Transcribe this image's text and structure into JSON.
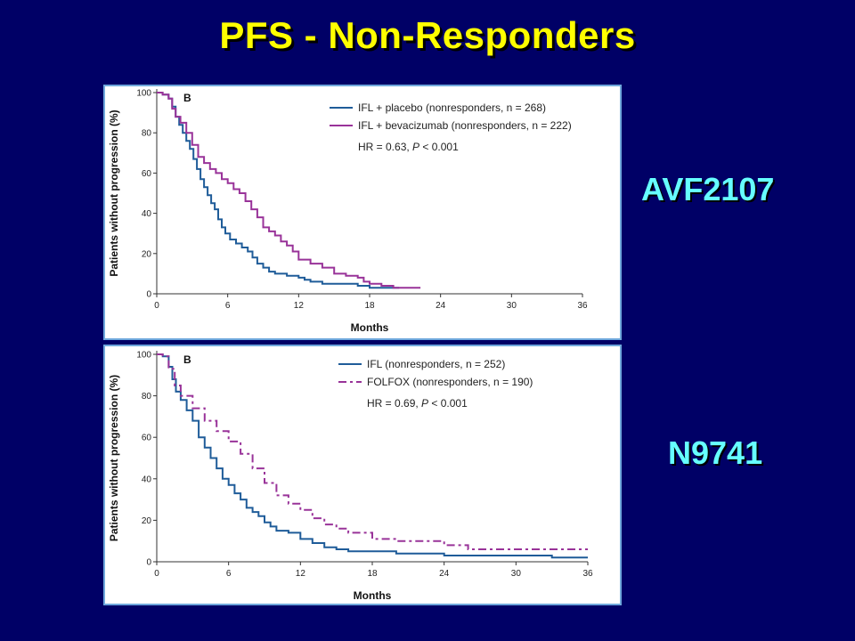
{
  "slide": {
    "title": "PFS - Non-Responders",
    "title_color": "#ffff00",
    "label_color": "#66ffff",
    "background": "#000066"
  },
  "chart_data": [
    {
      "type": "line",
      "trial_label": "AVF2107",
      "panel_letter": "B",
      "xlabel": "Months",
      "ylabel": "Patients without progression (%)",
      "xlim": [
        0,
        36
      ],
      "ylim": [
        0,
        100
      ],
      "xticks": [
        0,
        6,
        12,
        18,
        24,
        30,
        36
      ],
      "yticks": [
        0,
        20,
        40,
        60,
        80,
        100
      ],
      "grid": false,
      "legend_position": "top-right",
      "annotation": {
        "text": "HR = 0.63, ",
        "p_symbol": "P",
        "p_text": " < 0.001"
      },
      "series": [
        {
          "name": "IFL + placebo (nonresponders, n = 268)",
          "color": "#1f5c99",
          "dash": "solid",
          "x": [
            0,
            0.5,
            1,
            1.3,
            1.6,
            1.9,
            2.2,
            2.5,
            2.8,
            3.1,
            3.4,
            3.7,
            4,
            4.3,
            4.6,
            4.9,
            5.2,
            5.5,
            5.8,
            6.2,
            6.7,
            7.2,
            7.7,
            8.1,
            8.5,
            9,
            9.5,
            10,
            11,
            12,
            12.5,
            13,
            14,
            15,
            16,
            17,
            17.5,
            18,
            19,
            20.5
          ],
          "y": [
            100,
            99,
            97,
            93,
            88,
            84,
            80,
            76,
            72,
            67,
            62,
            57,
            53,
            49,
            45,
            42,
            37,
            33,
            30,
            27,
            25,
            23,
            21,
            18,
            15,
            13,
            11,
            10,
            9,
            8,
            7,
            6,
            5,
            5,
            5,
            4,
            4,
            3,
            3,
            3
          ]
        },
        {
          "name": "IFL + bevacizumab (nonresponders, n = 222)",
          "color": "#993399",
          "dash": "solid",
          "x": [
            0,
            0.5,
            1,
            1.3,
            1.6,
            2,
            2.5,
            3,
            3.5,
            4,
            4.5,
            5,
            5.5,
            6,
            6.5,
            7,
            7.5,
            8,
            8.5,
            9,
            9.5,
            10,
            10.5,
            11,
            11.5,
            12,
            13,
            14,
            15,
            16,
            17,
            17.5,
            18,
            19,
            20,
            21,
            22.3
          ],
          "y": [
            100,
            99,
            97,
            92,
            88,
            85,
            80,
            74,
            68,
            65,
            62,
            60,
            57,
            55,
            52,
            50,
            46,
            42,
            38,
            33,
            31,
            29,
            26,
            24,
            21,
            17,
            15,
            13,
            10,
            9,
            8,
            6,
            5,
            4,
            3,
            3,
            3
          ]
        }
      ]
    },
    {
      "type": "line",
      "trial_label": "N9741",
      "panel_letter": "B",
      "xlabel": "Months",
      "ylabel": "Patients without progression (%)",
      "xlim": [
        0,
        36
      ],
      "ylim": [
        0,
        100
      ],
      "xticks": [
        0,
        6,
        12,
        18,
        24,
        30,
        36
      ],
      "yticks": [
        0,
        20,
        40,
        60,
        80,
        100
      ],
      "grid": false,
      "legend_position": "top-right",
      "annotation": {
        "text": "HR = 0.69, ",
        "p_symbol": "P",
        "p_text": " < 0.001"
      },
      "series": [
        {
          "name": "IFL (nonresponders, n = 252)",
          "color": "#1f5c99",
          "dash": "solid",
          "x": [
            0,
            0.5,
            1,
            1.3,
            1.6,
            2,
            2.5,
            3,
            3.5,
            4,
            4.5,
            5,
            5.5,
            6,
            6.5,
            7,
            7.5,
            8,
            8.5,
            9,
            9.5,
            10,
            11,
            12,
            13,
            14,
            15,
            16,
            18,
            20,
            24,
            30,
            33,
            36
          ],
          "y": [
            100,
            99,
            94,
            88,
            82,
            78,
            73,
            68,
            60,
            55,
            50,
            45,
            40,
            37,
            33,
            30,
            26,
            24,
            22,
            19,
            17,
            15,
            14,
            11,
            9,
            7,
            6,
            5,
            5,
            4,
            3,
            3,
            2,
            2
          ]
        },
        {
          "name": "FOLFOX (nonresponders, n = 190)",
          "color": "#993399",
          "dash": "dashdot",
          "x": [
            0,
            0.5,
            1,
            1.5,
            2,
            3,
            4,
            5,
            6,
            7,
            8,
            9,
            10,
            11,
            12,
            13,
            14,
            15,
            16,
            18,
            20,
            22,
            24,
            26,
            30,
            36
          ],
          "y": [
            100,
            99,
            93,
            85,
            80,
            74,
            68,
            63,
            58,
            52,
            45,
            38,
            32,
            28,
            25,
            21,
            18,
            16,
            14,
            11,
            10,
            10,
            8,
            6,
            6,
            6
          ]
        }
      ]
    }
  ]
}
